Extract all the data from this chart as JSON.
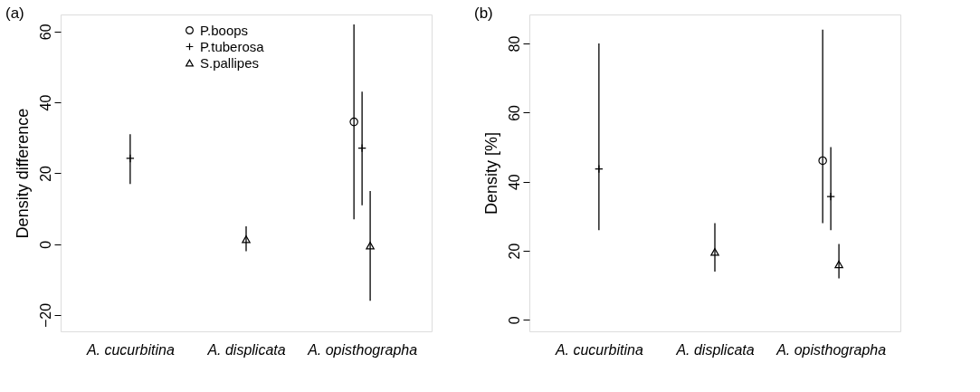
{
  "chart_data": [
    {
      "type": "scatter",
      "title": "(a)",
      "ylabel": "Density difference",
      "categories": [
        "A. cucurbitina",
        "A. displicata",
        "A. opisthographa"
      ],
      "ylim": [
        -24.6,
        64.8
      ],
      "yticks": [
        -20,
        0,
        20,
        40,
        60
      ],
      "grid": false,
      "legend": "top",
      "series": [
        {
          "name": "P.boops",
          "color": "#000000",
          "marker": "circle",
          "values": [
            null,
            null,
            34.5
          ],
          "errors": [
            null,
            null,
            [
              7,
              62
            ]
          ]
        },
        {
          "name": "P.tuberosa",
          "color": "#000000",
          "marker": "cross",
          "values": [
            24.2,
            null,
            27.1
          ],
          "errors": [
            [
              17,
              31
            ],
            null,
            [
              11,
              43
            ]
          ]
        },
        {
          "name": "S.pallipes",
          "color": "#000000",
          "marker": "triangle",
          "values": [
            null,
            1.4,
            -0.4
          ],
          "errors": [
            null,
            [
              -2,
              5
            ],
            [
              -16,
              15
            ]
          ]
        }
      ]
    },
    {
      "type": "scatter",
      "title": "(b)",
      "ylabel": "Density [%]",
      "categories": [
        "A. cucurbitina",
        "A. displicata",
        "A. opisthographa"
      ],
      "ylim": [
        -3.3,
        88.4
      ],
      "yticks": [
        0,
        20,
        40,
        60,
        80
      ],
      "grid": false,
      "series": [
        {
          "color": "#000000",
          "marker": "circle",
          "values": [
            null,
            null,
            46.1
          ],
          "errors": [
            null,
            null,
            [
              28,
              84
            ]
          ]
        },
        {
          "color": "#000000",
          "marker": "cross",
          "values": [
            43.7,
            null,
            35.7
          ],
          "errors": [
            [
              26,
              80
            ],
            null,
            [
              26,
              50
            ]
          ]
        },
        {
          "color": "#000000",
          "marker": "triangle",
          "values": [
            null,
            19.7,
            16.1
          ],
          "errors": [
            null,
            [
              14,
              28
            ],
            [
              12,
              22
            ]
          ]
        }
      ]
    }
  ]
}
